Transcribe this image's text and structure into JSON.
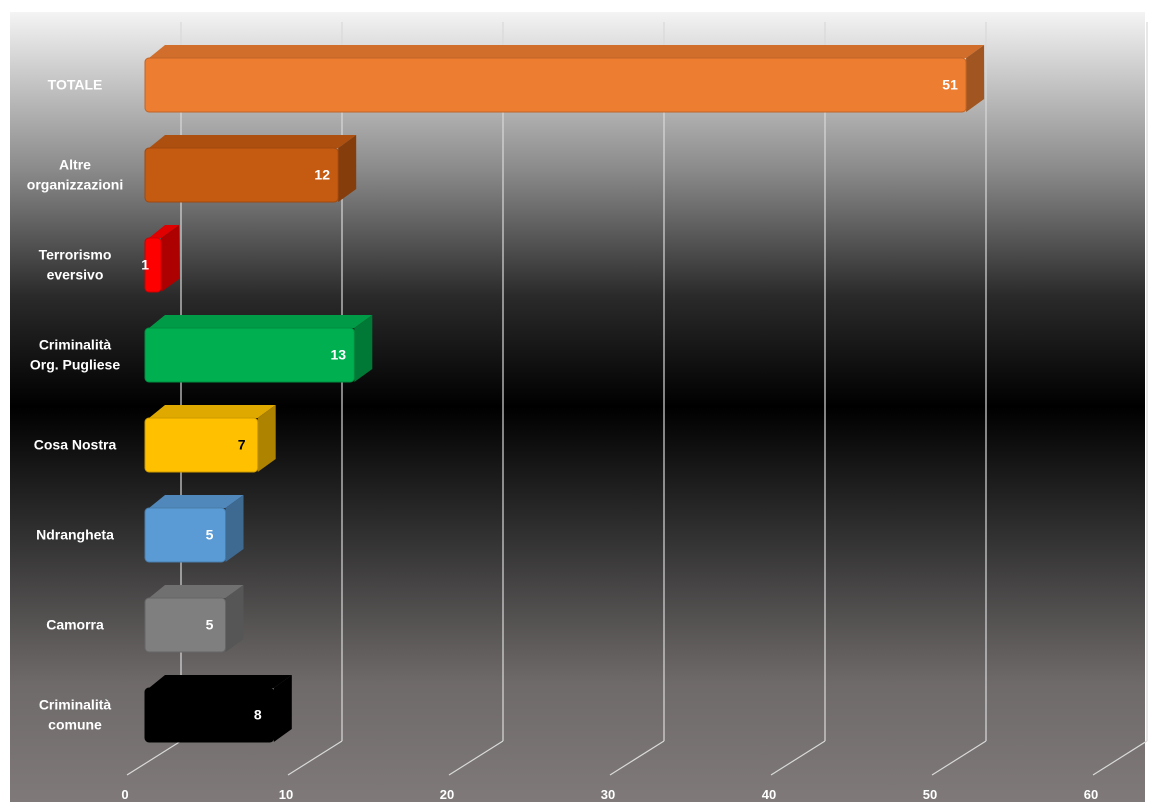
{
  "chart_data": {
    "type": "bar",
    "orientation": "horizontal",
    "style": "3d",
    "title": "",
    "xlabel": "",
    "ylabel": "",
    "categories": [
      "TOTALE",
      "Altre organizzazioni",
      "Terrorismo eversivo",
      "Criminalità Org. Pugliese",
      "Cosa Nostra",
      "Ndrangheta",
      "Camorra",
      "Criminalità comune"
    ],
    "category_lines": [
      [
        "TOTALE"
      ],
      [
        "Altre",
        "organizzazioni"
      ],
      [
        "Terrorismo",
        "eversivo"
      ],
      [
        "Criminalità",
        "Org. Pugliese"
      ],
      [
        "Cosa Nostra"
      ],
      [
        "Ndrangheta"
      ],
      [
        "Camorra"
      ],
      [
        "Criminalità",
        "comune"
      ]
    ],
    "values": [
      51,
      12,
      1,
      13,
      7,
      5,
      5,
      8
    ],
    "value_labels": [
      "51",
      "12",
      "1",
      "13",
      "7",
      "5",
      "5",
      "8"
    ],
    "bar_colors": [
      "#ED7D31",
      "#C55A11",
      "#FF0000",
      "#00B050",
      "#FFC000",
      "#5B9BD5",
      "#7F7F7F",
      "#000000"
    ],
    "label_colors": [
      "#FFFFFF",
      "#FFFFFF",
      "#FFFFFF",
      "#FFFFFF",
      "#000000",
      "#FFFFFF",
      "#FFFFFF",
      "#FFFFFF"
    ],
    "xlim": [
      0,
      60
    ],
    "xticks": [
      "0",
      "10",
      "20",
      "30",
      "40",
      "50",
      "60"
    ],
    "grid": true,
    "legend": "none",
    "background": "gradient gray-black-gray"
  }
}
